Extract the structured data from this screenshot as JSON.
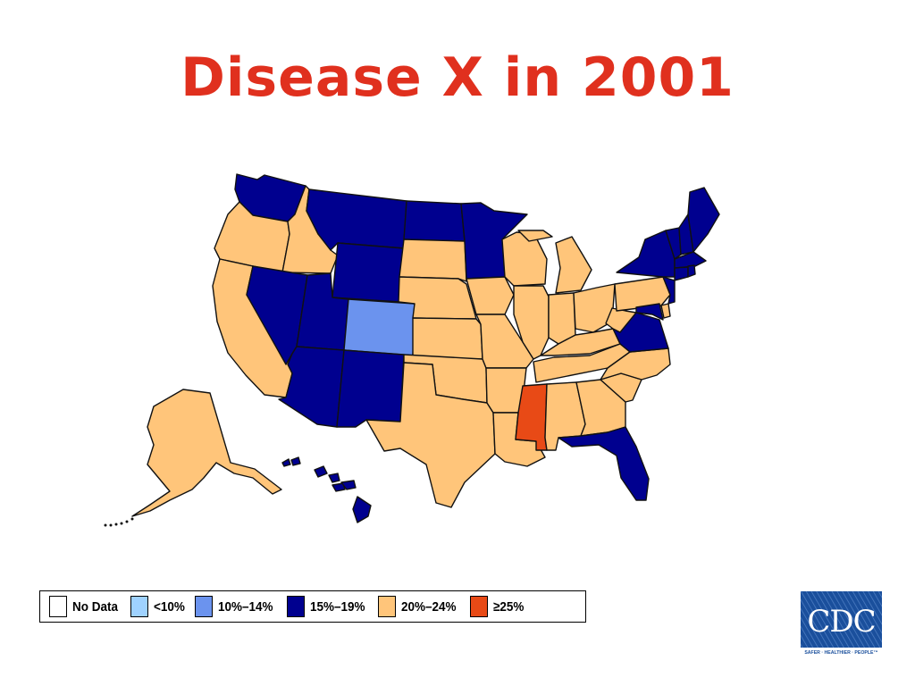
{
  "title": "Disease X in 2001",
  "colors": {
    "title": "#e0301e",
    "no_data": "#ffffff",
    "lt10": "#9fd2ff",
    "10_14": "#6b93ee",
    "15_19": "#00008f",
    "20_24": "#ffc57a",
    "ge25": "#e84a16"
  },
  "legend": [
    {
      "key": "no_data",
      "label": "No Data"
    },
    {
      "key": "lt10",
      "label": "<10%"
    },
    {
      "key": "10_14",
      "label": "10%–14%"
    },
    {
      "key": "15_19",
      "label": "15%–19%"
    },
    {
      "key": "20_24",
      "label": "20%–24%"
    },
    {
      "key": "ge25",
      "label": "≥25%"
    }
  ],
  "states": {
    "WA": "15_19",
    "OR": "20_24",
    "CA": "20_24",
    "ID": "20_24",
    "NV": "15_19",
    "MT": "15_19",
    "WY": "15_19",
    "UT": "15_19",
    "AZ": "15_19",
    "CO": "10_14",
    "NM": "15_19",
    "ND": "15_19",
    "SD": "20_24",
    "NE": "20_24",
    "KS": "20_24",
    "OK": "20_24",
    "TX": "20_24",
    "MN": "15_19",
    "IA": "20_24",
    "MO": "20_24",
    "AR": "20_24",
    "LA": "20_24",
    "WI": "20_24",
    "IL": "20_24",
    "MI": "20_24",
    "IN": "20_24",
    "OH": "20_24",
    "KY": "20_24",
    "TN": "20_24",
    "MS": "ge25",
    "AL": "20_24",
    "GA": "20_24",
    "FL": "15_19",
    "SC": "20_24",
    "NC": "20_24",
    "VA": "15_19",
    "WV": "20_24",
    "PA": "20_24",
    "NY": "15_19",
    "VT": "15_19",
    "NH": "15_19",
    "ME": "15_19",
    "MA": "15_19",
    "RI": "15_19",
    "CT": "15_19",
    "NJ": "15_19",
    "DE": "20_24",
    "MD": "15_19",
    "AK": "20_24",
    "HI": "15_19"
  },
  "logo": {
    "text": "CDC",
    "tagline": "SAFER · HEALTHIER · PEOPLE™",
    "color": "#1a4f9c"
  }
}
